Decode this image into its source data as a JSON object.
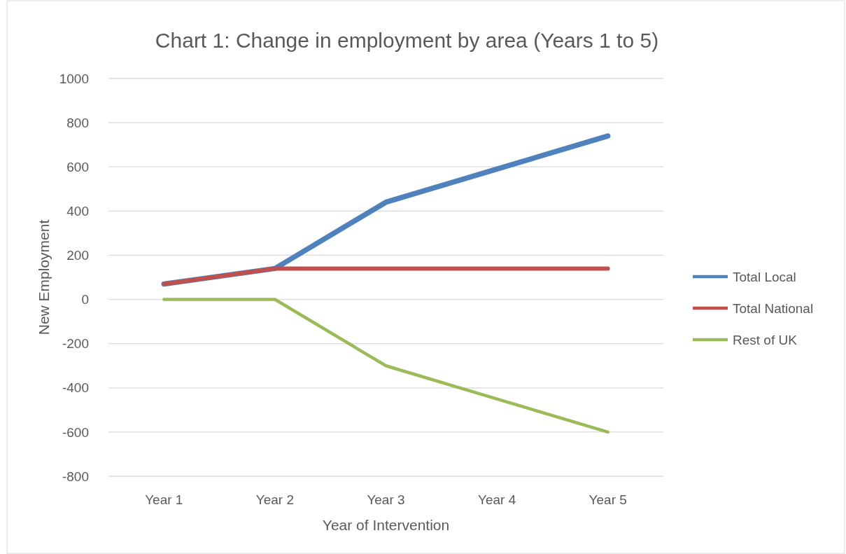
{
  "chart_data": {
    "type": "line",
    "title": "Chart 1: Change in employment by area (Years 1 to 5)",
    "xlabel": "Year of  Intervention",
    "ylabel": "New Employment",
    "categories": [
      "Year 1",
      "Year 2",
      "Year 3",
      "Year 4",
      "Year 5"
    ],
    "series": [
      {
        "name": "Total Local",
        "color": "#4f81bd",
        "values": [
          70,
          140,
          440,
          590,
          740
        ]
      },
      {
        "name": "Total National",
        "color": "#c0504d",
        "values": [
          70,
          140,
          140,
          140,
          140
        ]
      },
      {
        "name": "Rest of UK",
        "color": "#9bbb59",
        "values": [
          0,
          0,
          -300,
          -450,
          -600
        ]
      }
    ],
    "ylim": [
      -800,
      1000
    ],
    "yticks": [
      -800,
      -600,
      -400,
      -200,
      0,
      200,
      400,
      600,
      800,
      1000
    ],
    "grid": "y",
    "legend": "right",
    "marker": "none",
    "line_style": "solid"
  }
}
